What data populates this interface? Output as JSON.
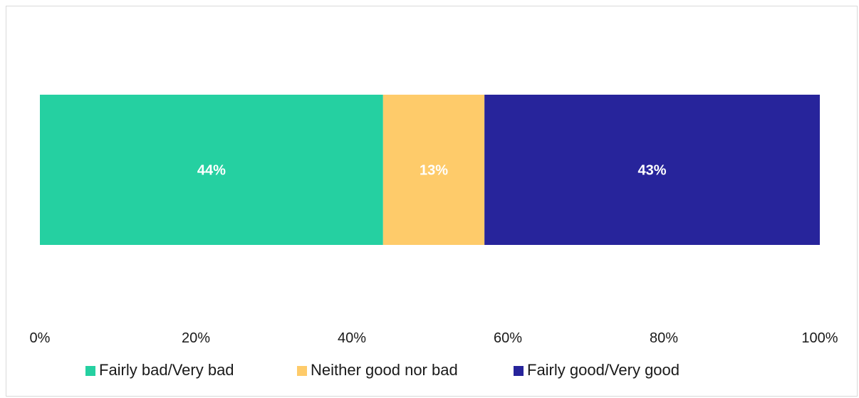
{
  "chart_data": {
    "type": "bar",
    "orientation": "horizontal",
    "stacked": true,
    "categories": [
      ""
    ],
    "series": [
      {
        "name": "Fairly bad/Very bad",
        "values": [
          44
        ],
        "label": "44%",
        "color": "#25d0a1"
      },
      {
        "name": "Neither good nor bad",
        "values": [
          13
        ],
        "label": "13%",
        "color": "#fecb6a"
      },
      {
        "name": "Fairly good/Very good",
        "values": [
          43
        ],
        "label": "43%",
        "color": "#27249b"
      }
    ],
    "xlim": [
      0,
      100
    ],
    "x_ticks": [
      0,
      20,
      40,
      60,
      80,
      100
    ],
    "x_tick_labels": [
      "0%",
      "20%",
      "40%",
      "60%",
      "80%",
      "100%"
    ],
    "grid": false,
    "legend": "bottom",
    "title": "",
    "xlabel": "",
    "ylabel": ""
  }
}
